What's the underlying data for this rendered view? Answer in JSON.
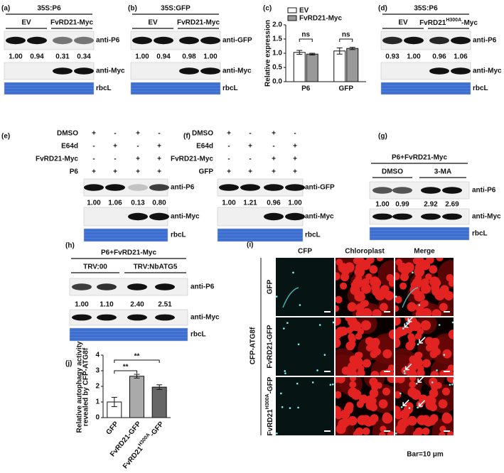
{
  "panels": {
    "a": {
      "letter": "(a)",
      "construct": "35S:P6",
      "groups": [
        "EV",
        "FvRD21-Myc"
      ],
      "quant": [
        "1.00",
        "0.94",
        "0.31",
        "0.34"
      ],
      "blots": [
        "anti-P6",
        "anti-Myc",
        "rbcL"
      ]
    },
    "b": {
      "letter": "(b)",
      "construct": "35S:GFP",
      "groups": [
        "EV",
        "FvRD21-Myc"
      ],
      "quant": [
        "1.00",
        "0.94",
        "0.98",
        "1.00"
      ],
      "blots": [
        "anti-GFP",
        "anti-Myc",
        "rbcL"
      ]
    },
    "d": {
      "letter": "(d)",
      "construct": "35S:P6",
      "groups": [
        "EV",
        {
          "base": "FvRD21",
          "sup": "H300A",
          "tail": "-Myc"
        }
      ],
      "quant": [
        "0.93",
        "1.00",
        "0.96",
        "1.06"
      ],
      "blots": [
        "anti-P6",
        "anti-Myc",
        "rbcL"
      ]
    },
    "e": {
      "letter": "(e)",
      "treatments": [
        {
          "label": "DMSO",
          "signs": [
            "+",
            "-",
            "+",
            "-"
          ]
        },
        {
          "label": "E64d",
          "signs": [
            "-",
            "+",
            "-",
            "+"
          ]
        },
        {
          "label": "FvRD21-Myc",
          "signs": [
            "-",
            "-",
            "+",
            "+"
          ]
        },
        {
          "label": "P6",
          "signs": [
            "+",
            "+",
            "+",
            "+"
          ]
        }
      ],
      "quant": [
        "1.00",
        "1.06",
        "0.13",
        "0.80"
      ],
      "blots": [
        "anti-P6",
        "anti-Myc",
        "rbcL"
      ]
    },
    "f": {
      "letter": "(f)",
      "treatments": [
        {
          "label": "DMSO",
          "signs": [
            "+",
            "-",
            "+",
            "-"
          ]
        },
        {
          "label": "E64d",
          "signs": [
            "-",
            "+",
            "-",
            "+"
          ]
        },
        {
          "label": "FvRD21-Myc",
          "signs": [
            "-",
            "-",
            "+",
            "+"
          ]
        },
        {
          "label": "GFP",
          "signs": [
            "+",
            "+",
            "+",
            "+"
          ]
        }
      ],
      "quant": [
        "1.00",
        "1.21",
        "0.96",
        "1.00"
      ],
      "blots": [
        "anti-GFP",
        "anti-Myc",
        "rbcL"
      ]
    },
    "g": {
      "letter": "(g)",
      "construct": "P6+FvRD21-Myc",
      "groups": [
        "DMSO",
        "3-MA"
      ],
      "quant": [
        "1.00",
        "0.99",
        "2.92",
        "2.69"
      ],
      "blots": [
        "anti-P6",
        "anti-Myc",
        "rbcL"
      ]
    },
    "h": {
      "letter": "(h)",
      "construct": "P6+FvRD21-Myc",
      "groups": [
        "TRV:00",
        "TRV:NbATG5"
      ],
      "quant": [
        "1.00",
        "1.10",
        "2.40",
        "2.51"
      ],
      "blots": [
        "anti-P6",
        "anti-Myc",
        "rbcL"
      ]
    },
    "i": {
      "letter": "(i)",
      "columns": [
        "CFP",
        "Chloroplast",
        "Merge"
      ],
      "construct": "CFP-ATG8f",
      "rows": [
        "GFP",
        "FvRD21-GFP",
        {
          "base": "FvRD21",
          "sup": "H300A",
          "tail": "-GFP"
        }
      ],
      "scale": "Bar=10 μm"
    }
  },
  "chart_data": [
    {
      "type": "bar",
      "letter": "(c)",
      "y_label": "Relative expression",
      "categories": [
        "P6",
        "GFP"
      ],
      "series": [
        {
          "name": "EV",
          "color": "#ffffff",
          "values": [
            1.03,
            1.08
          ],
          "errors": [
            0.07,
            0.11
          ]
        },
        {
          "name": "FvRD21-Myc",
          "color": "#999999",
          "values": [
            0.97,
            1.17
          ],
          "errors": [
            0.03,
            0.04
          ]
        }
      ],
      "annotations": [
        "ns",
        "ns"
      ],
      "ylim": [
        0,
        2
      ],
      "yticks": [
        {
          "value": 0,
          "label": "0.0"
        },
        {
          "value": 0.5,
          "label": "0.5"
        },
        {
          "value": 1,
          "label": "1.0"
        },
        {
          "value": 1.5,
          "label": "1.5"
        },
        {
          "value": 2,
          "label": "2.0"
        }
      ]
    },
    {
      "type": "bar",
      "letter": "(j)",
      "y_label": [
        "Relative autophagy activity",
        "revealed by CFP-ATG8f"
      ],
      "categories": [
        "GFP",
        "FvRD21-GFP",
        {
          "base": "FvRD21",
          "sup": "H300A",
          "tail": "-GFP"
        }
      ],
      "values": [
        1.0,
        2.65,
        1.95
      ],
      "errors": [
        0.3,
        0.12,
        0.15
      ],
      "colors": [
        "#ffffff",
        "#aaaaaa",
        "#666666"
      ],
      "annotations": [
        "**",
        "**"
      ],
      "ylim": [
        0,
        4
      ],
      "yticks": [
        0,
        1,
        2,
        3,
        4
      ]
    }
  ]
}
